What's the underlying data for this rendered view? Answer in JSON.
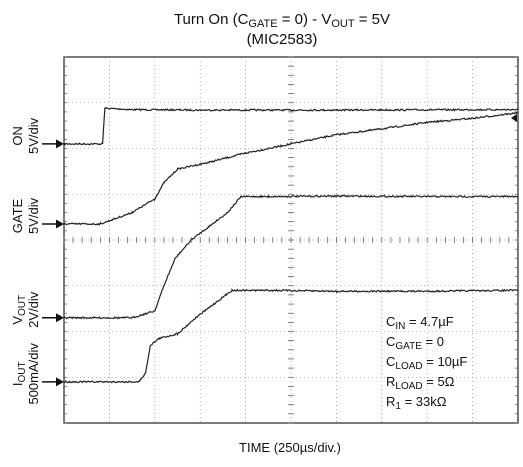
{
  "chart_data": {
    "type": "line",
    "title": {
      "prefix": "Turn On (C",
      "cgate_sub": "GATE",
      "mid": " = 0) -  V",
      "vout_sub": "OUT",
      "suffix": " = 5V",
      "line2": "(MIC2583)"
    },
    "xlabel": "TIME (250µs/div.)",
    "x_unit": "div",
    "xlim": [
      0,
      10
    ],
    "ylim": [
      0,
      8
    ],
    "grid": true,
    "channels": [
      {
        "label": {
          "main": "ON",
          "sub": "",
          "rest": ""
        },
        "scale": "5V/div",
        "ground_div": 6.1
      },
      {
        "label": {
          "main": "GATE",
          "sub": "",
          "rest": ""
        },
        "scale": "5V/div",
        "ground_div": 4.35
      },
      {
        "label": {
          "main": "V",
          "sub": "OUT",
          "rest": ""
        },
        "scale": "2V/div",
        "ground_div": 2.3
      },
      {
        "label": {
          "main": "I",
          "sub": "OUT",
          "rest": ""
        },
        "scale": "500mA/div",
        "ground_div": 0.9
      }
    ],
    "series": [
      {
        "name": "ON",
        "color": "#222222",
        "points": [
          [
            0,
            6.1
          ],
          [
            0.85,
            6.1
          ],
          [
            0.9,
            6.88
          ],
          [
            1.5,
            6.85
          ],
          [
            3,
            6.84
          ],
          [
            6,
            6.84
          ],
          [
            10,
            6.85
          ]
        ]
      },
      {
        "name": "GATE",
        "color": "#222222",
        "points": [
          [
            0,
            4.35
          ],
          [
            0.8,
            4.35
          ],
          [
            1.5,
            4.6
          ],
          [
            2,
            4.9
          ],
          [
            2.2,
            5.25
          ],
          [
            2.5,
            5.55
          ],
          [
            3.2,
            5.7
          ],
          [
            4,
            5.9
          ],
          [
            5,
            6.1
          ],
          [
            6,
            6.3
          ],
          [
            7,
            6.43
          ],
          [
            8,
            6.57
          ],
          [
            9,
            6.66
          ],
          [
            10,
            6.78
          ]
        ]
      },
      {
        "name": "VOUT",
        "color": "#222222",
        "points": [
          [
            0,
            2.3
          ],
          [
            1.5,
            2.3
          ],
          [
            2,
            2.45
          ],
          [
            2.2,
            3.0
          ],
          [
            2.45,
            3.6
          ],
          [
            2.8,
            4.0
          ],
          [
            3.2,
            4.3
          ],
          [
            3.6,
            4.6
          ],
          [
            3.9,
            4.95
          ],
          [
            4.5,
            4.95
          ],
          [
            6,
            4.96
          ],
          [
            8,
            4.95
          ],
          [
            10,
            4.95
          ]
        ]
      },
      {
        "name": "IOUT",
        "color": "#222222",
        "points": [
          [
            0,
            0.9
          ],
          [
            1.65,
            0.9
          ],
          [
            1.8,
            1.1
          ],
          [
            1.9,
            1.7
          ],
          [
            2.1,
            1.85
          ],
          [
            2.5,
            1.95
          ],
          [
            2.9,
            2.3
          ],
          [
            3.3,
            2.6
          ],
          [
            3.7,
            2.9
          ],
          [
            4.6,
            2.9
          ],
          [
            6,
            2.88
          ],
          [
            8,
            2.88
          ],
          [
            10,
            2.9
          ]
        ]
      }
    ],
    "annotations": [
      {
        "main": "C",
        "sub": "IN",
        "rest": " = 4.7µF"
      },
      {
        "main": "C",
        "sub": "GATE",
        "rest": " = 0"
      },
      {
        "main": "C",
        "sub": "LOAD",
        "rest": " = 10µF"
      },
      {
        "main": "R",
        "sub": "LOAD",
        "rest": " = 5Ω"
      },
      {
        "main": "R",
        "sub": "1",
        "rest": " = 33kΩ"
      }
    ]
  }
}
